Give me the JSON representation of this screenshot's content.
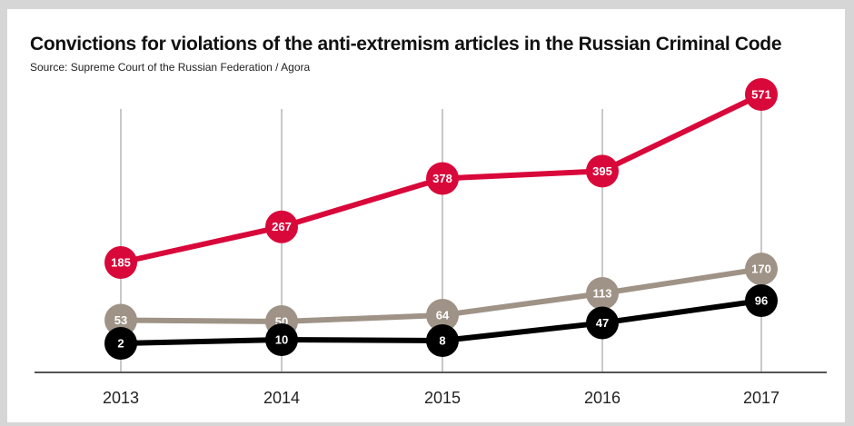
{
  "chart_data": {
    "type": "line",
    "title": "Convictions for violations of the anti-extremism articles in the Russian Criminal Code",
    "subtitle": "Source: Supreme Court of the Russian Federation / Agora",
    "xlabel": "",
    "ylabel": "",
    "categories": [
      "2013",
      "2014",
      "2015",
      "2016",
      "2017"
    ],
    "series": [
      {
        "color": "#d9083a",
        "values": [
          185,
          267,
          378,
          395,
          571
        ]
      },
      {
        "color": "#9f9387",
        "values": [
          53,
          50,
          64,
          113,
          170
        ]
      },
      {
        "color": "#000000",
        "values": [
          2,
          10,
          8,
          47,
          96
        ]
      }
    ],
    "grid": "vertical lines at each year",
    "legend": "none"
  }
}
